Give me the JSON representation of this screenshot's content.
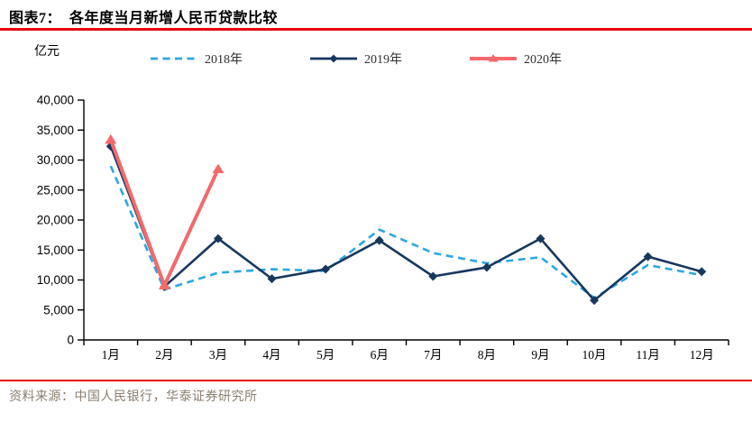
{
  "header": {
    "title": "图表7：  各年度当月新增人民币贷款比较",
    "unit_label": "亿元"
  },
  "legend": [
    {
      "label": "2018年",
      "color": "#2aa7e0",
      "line": "dashed",
      "marker": "none"
    },
    {
      "label": "2019年",
      "color": "#17375e",
      "line": "solid",
      "marker": "diamond"
    },
    {
      "label": "2020年",
      "color": "#f4696c",
      "line": "solid",
      "marker": "triangle"
    }
  ],
  "chart_data": {
    "type": "line",
    "title": "各年度当月新增人民币贷款比较",
    "xlabel": "",
    "ylabel": "亿元",
    "categories": [
      "1月",
      "2月",
      "3月",
      "4月",
      "5月",
      "6月",
      "7月",
      "8月",
      "9月",
      "10月",
      "11月",
      "12月"
    ],
    "series": [
      {
        "name": "2018年",
        "color": "#2aa7e0",
        "line": "dashed",
        "marker": "none",
        "values": [
          29000,
          8400,
          11200,
          11800,
          11500,
          18400,
          14500,
          12800,
          13800,
          7000,
          12500,
          10800
        ]
      },
      {
        "name": "2019年",
        "color": "#17375e",
        "line": "solid",
        "marker": "diamond",
        "values": [
          32300,
          8900,
          16900,
          10200,
          11800,
          16600,
          10600,
          12100,
          16900,
          6600,
          13900,
          11400
        ]
      },
      {
        "name": "2020年",
        "color": "#f4696c",
        "line": "solid",
        "marker": "triangle",
        "values": [
          33400,
          9100,
          28500
        ]
      }
    ],
    "ylim": [
      0,
      40000
    ],
    "ytick_step": 5000,
    "ytick_labels": [
      "0",
      "5,000",
      "10,000",
      "15,000",
      "20,000",
      "25,000",
      "30,000",
      "35,000",
      "40,000"
    ],
    "grid": false,
    "legend_position": "top"
  },
  "colors": {
    "accent_rule": "#e60012",
    "axis": "#000000",
    "source_text": "#8a7e6e"
  },
  "footer": {
    "source": "资料来源：中国人民银行，华泰证券研究所"
  }
}
